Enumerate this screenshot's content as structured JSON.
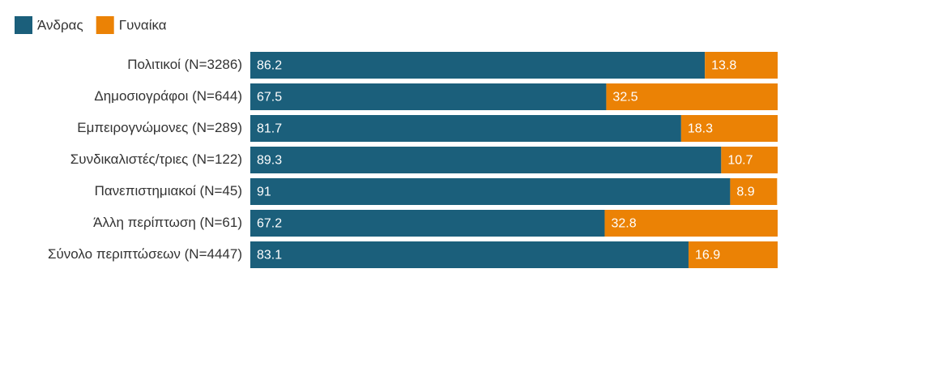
{
  "chart_data": {
    "type": "stacked-barh",
    "categories": [
      "Πολιτικοί (N=3286)",
      "Δημοσιογράφοι (N=644)",
      "Εμπειρογνώμονες (N=289)",
      "Συνδικαλιστές/τριες (N=122)",
      "Πανεπιστημιακοί (N=45)",
      "Άλλη περίπτωση (N=61)",
      "Σύνολο περιπτώσεων (N=4447)"
    ],
    "series": [
      {
        "name": "Άνδρας",
        "color": "#1b5f7b",
        "values": [
          86.2,
          67.5,
          81.7,
          89.3,
          91,
          67.2,
          83.1
        ]
      },
      {
        "name": "Γυναίκα",
        "color": "#eb8205",
        "values": [
          13.8,
          32.5,
          18.3,
          10.7,
          8.9,
          32.8,
          16.9
        ]
      }
    ],
    "xlim": [
      0,
      100
    ],
    "legend": "top-left"
  }
}
